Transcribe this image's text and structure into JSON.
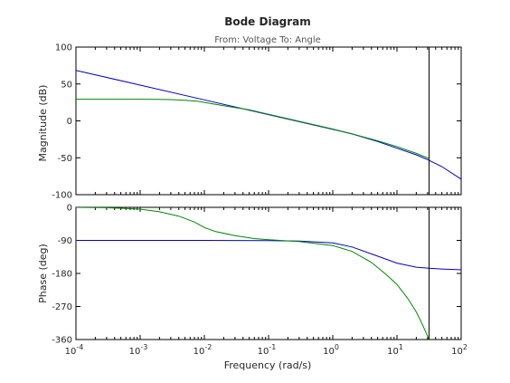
{
  "chart_data": [
    {
      "type": "line",
      "title": "Bode Diagram",
      "subtitle": "From: Voltage  To: Angle",
      "ylabel": "Magnitude (dB)",
      "xlabel": "",
      "xscale": "log",
      "xlim": [
        0.0001,
        100
      ],
      "ylim": [
        -100,
        100
      ],
      "yticks": [
        100,
        50,
        0,
        -50,
        -100
      ],
      "marker_x": 31.6,
      "series": [
        {
          "color": "#0000cc",
          "x": [
            0.0001,
            0.001,
            0.01,
            0.1,
            1,
            2,
            5,
            10,
            20,
            31.6,
            50,
            100
          ],
          "y": [
            68.5,
            48.5,
            28.5,
            8.5,
            -11.5,
            -17.7,
            -28,
            -37,
            -46,
            -53.5,
            -62,
            -79
          ]
        },
        {
          "color": "#008800",
          "x": [
            0.0001,
            0.001,
            0.002,
            0.003,
            0.005,
            0.008,
            0.01,
            0.02,
            0.05,
            0.1,
            1,
            2,
            5,
            10,
            20,
            31.6
          ],
          "y": [
            29.3,
            29.3,
            29.1,
            28.8,
            28,
            26.5,
            25,
            20.5,
            15,
            9,
            -11,
            -17.5,
            -27,
            -35,
            -44,
            -51
          ]
        }
      ]
    },
    {
      "type": "line",
      "ylabel": "Phase (deg)",
      "xlabel": "Frequency  (rad/s)",
      "xscale": "log",
      "xlim": [
        0.0001,
        100
      ],
      "ylim": [
        -360,
        0
      ],
      "yticks": [
        0,
        -90,
        -180,
        -270,
        -360
      ],
      "xticks": [
        {
          "base": "10",
          "exp": "-4"
        },
        {
          "base": "10",
          "exp": "-3"
        },
        {
          "base": "10",
          "exp": "-2"
        },
        {
          "base": "10",
          "exp": "-1"
        },
        {
          "base": "10",
          "exp": "0"
        },
        {
          "base": "10",
          "exp": "1"
        },
        {
          "base": "10",
          "exp": "2"
        }
      ],
      "marker_x": 31.6,
      "series": [
        {
          "color": "#0000cc",
          "x": [
            0.0001,
            0.01,
            0.1,
            0.3,
            1,
            2,
            5,
            10,
            20,
            31.6,
            50,
            100
          ],
          "y": [
            -90,
            -90,
            -90.5,
            -92,
            -97,
            -108,
            -133,
            -152,
            -163,
            -166,
            -168,
            -170
          ]
        },
        {
          "color": "#008800",
          "x": [
            0.0001,
            0.0003,
            0.001,
            0.002,
            0.004,
            0.007,
            0.01,
            0.015,
            0.03,
            0.06,
            0.1,
            0.3,
            1,
            2,
            4,
            7,
            10,
            15,
            20,
            25,
            31.6
          ],
          "y": [
            0,
            -1,
            -5,
            -12,
            -24,
            -40,
            -55,
            -66,
            -77,
            -85,
            -88,
            -93,
            -104,
            -120,
            -150,
            -185,
            -210,
            -250,
            -285,
            -320,
            -360
          ]
        }
      ]
    }
  ]
}
